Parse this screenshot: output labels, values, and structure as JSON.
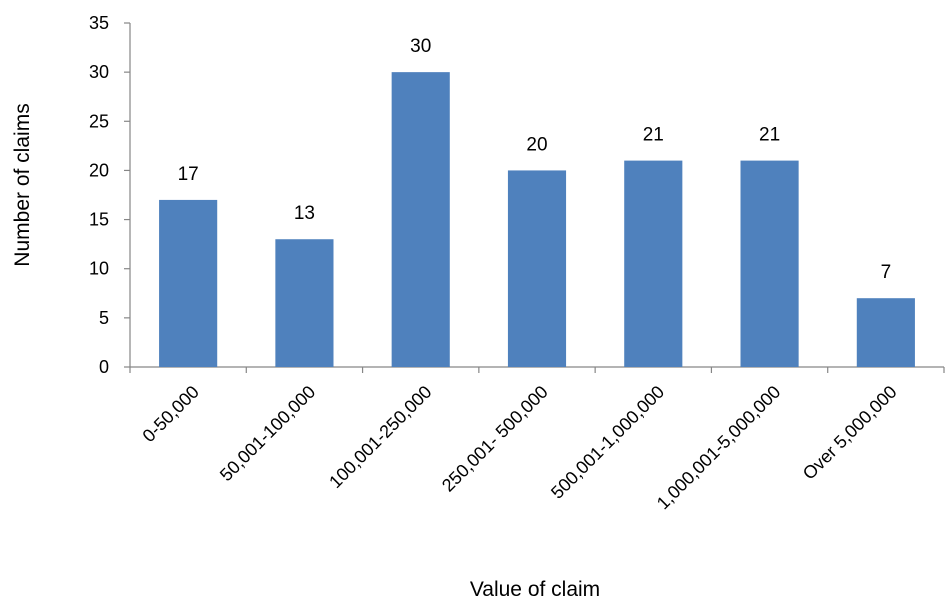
{
  "chart_data": {
    "type": "bar",
    "categories": [
      "0-50,000",
      "50,001-100,000",
      "100,001-250,000",
      "250,001- 500,000",
      "500,001-1,000,000",
      "1,000,001-5,000,000",
      "Over 5,000,000"
    ],
    "values": [
      17,
      13,
      30,
      20,
      21,
      21,
      7
    ],
    "title": "",
    "xlabel": "Value of claim",
    "ylabel": "Number of claims",
    "ylim": [
      0,
      35
    ],
    "yticks": [
      0,
      5,
      10,
      15,
      20,
      25,
      30,
      35
    ],
    "grid": false,
    "legend": "none",
    "data_labels": true,
    "bar_color": "#4f81bd",
    "axis_color": "#868686"
  }
}
